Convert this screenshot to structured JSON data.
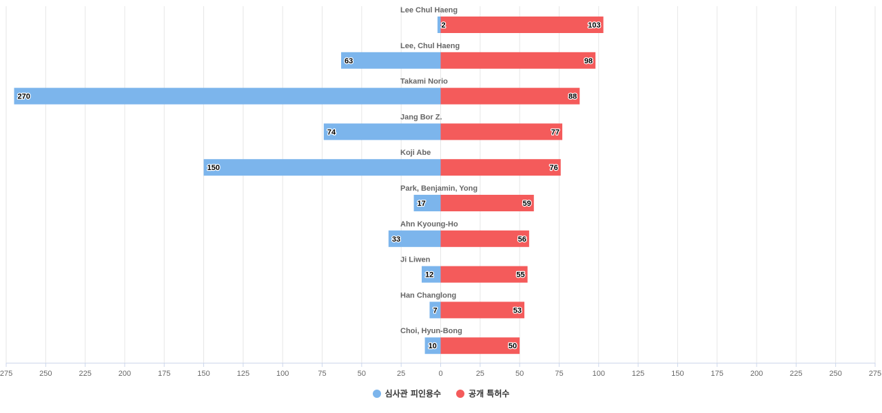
{
  "chart_data": {
    "type": "bar",
    "orientation": "horizontal-diverging",
    "categories": [
      "Lee Chul Haeng",
      "Lee, Chul Haeng",
      "Takami Norio",
      "Jang Bor Z.",
      "Koji Abe",
      "Park, Benjamin, Yong",
      "Ahn Kyoung-Ho",
      "Ji Liwen",
      "Han Changlong",
      "Choi, Hyun-Bong"
    ],
    "series": [
      {
        "name": "심사관 피인용수",
        "values": [
          2,
          63,
          270,
          74,
          150,
          17,
          33,
          12,
          7,
          10
        ],
        "color": "#7cb5ec",
        "side": "left"
      },
      {
        "name": "공개 특허수",
        "values": [
          103,
          98,
          88,
          77,
          76,
          59,
          56,
          55,
          53,
          50
        ],
        "color": "#f45b5b",
        "side": "right"
      }
    ],
    "ticks": [
      "275",
      "250",
      "225",
      "200",
      "175",
      "150",
      "125",
      "100",
      "75",
      "50",
      "25",
      "0",
      "25",
      "50",
      "75",
      "100",
      "125",
      "150",
      "175",
      "200",
      "225",
      "250",
      "275"
    ],
    "xlim": [
      -275,
      275
    ],
    "grid": true,
    "legend_position": "bottom-center"
  }
}
